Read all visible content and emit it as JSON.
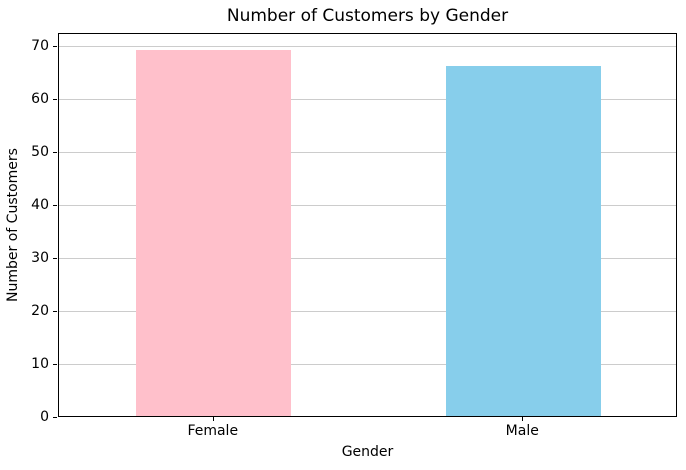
{
  "chart_data": {
    "type": "bar",
    "title": "Number of Customers by Gender",
    "xlabel": "Gender",
    "ylabel": "Number of Customers",
    "categories": [
      "Female",
      "Male"
    ],
    "values": [
      69,
      66
    ],
    "bar_colors": [
      "#FFC0CB",
      "#87CEEB"
    ],
    "ylim": [
      0,
      72.45
    ],
    "yticks": [
      0,
      10,
      20,
      30,
      40,
      50,
      60,
      70
    ],
    "grid": "horizontal gridlines on",
    "grid_color": "#cccccc",
    "spine_color": "#000000",
    "legend_position": "none",
    "bar_width_fraction": 0.5
  }
}
